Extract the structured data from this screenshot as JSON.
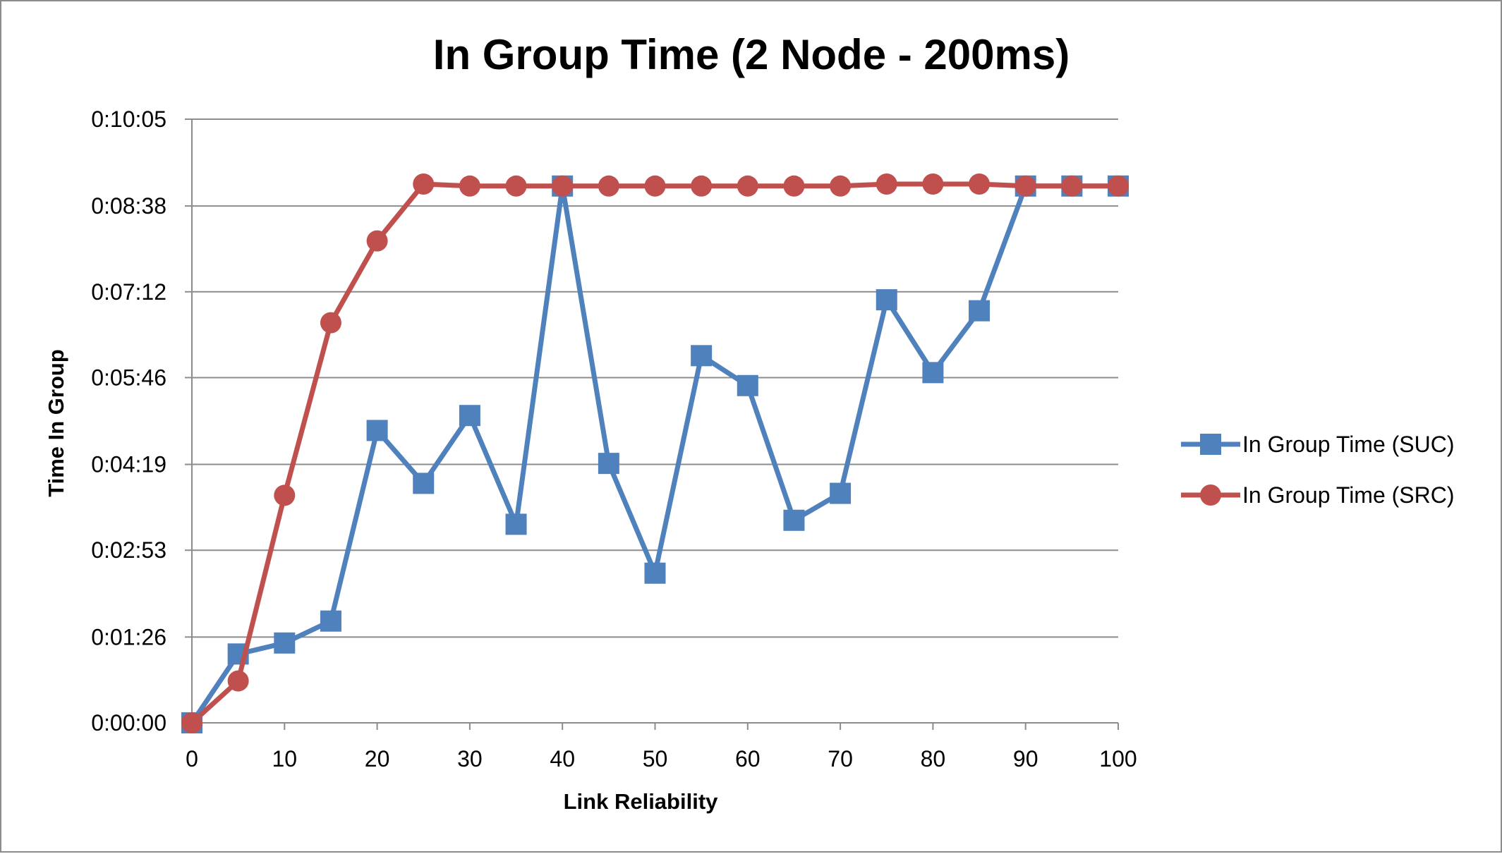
{
  "chart_data": {
    "type": "line",
    "title": "In Group Time (2 Node - 200ms)",
    "xlabel": "Link Reliability",
    "ylabel": "Time In Group",
    "x": [
      0,
      5,
      10,
      15,
      20,
      25,
      30,
      35,
      40,
      45,
      50,
      55,
      60,
      65,
      70,
      75,
      80,
      85,
      90,
      95,
      100
    ],
    "x_ticks": [
      "0",
      "10",
      "20",
      "30",
      "40",
      "50",
      "60",
      "70",
      "80",
      "90",
      "100"
    ],
    "x_tick_values": [
      0,
      10,
      20,
      30,
      40,
      50,
      60,
      70,
      80,
      90,
      100
    ],
    "xlim": [
      0,
      100
    ],
    "y_ticks": [
      "0:00:00",
      "0:01:26",
      "0:02:53",
      "0:04:19",
      "0:05:46",
      "0:07:12",
      "0:08:38",
      "0:10:05"
    ],
    "y_tick_values": [
      0,
      86,
      173,
      259,
      346,
      432,
      518,
      605
    ],
    "ylim": [
      0,
      605
    ],
    "grid": true,
    "legend_position": "right",
    "series": [
      {
        "name": "In Group Time (SUC)",
        "color": "#4f81bd",
        "marker": "square",
        "values": [
          0,
          69,
          80,
          102,
          293,
          240,
          308,
          199,
          538,
          260,
          150,
          368,
          338,
          203,
          230,
          424,
          351,
          413,
          538,
          538,
          538
        ]
      },
      {
        "name": "In Group Time (SRC)",
        "color": "#c0504d",
        "marker": "circle",
        "values": [
          0,
          42,
          228,
          401,
          483,
          540,
          538,
          538,
          538,
          538,
          538,
          538,
          538,
          538,
          538,
          540,
          540,
          540,
          538,
          538,
          538
        ]
      }
    ]
  }
}
